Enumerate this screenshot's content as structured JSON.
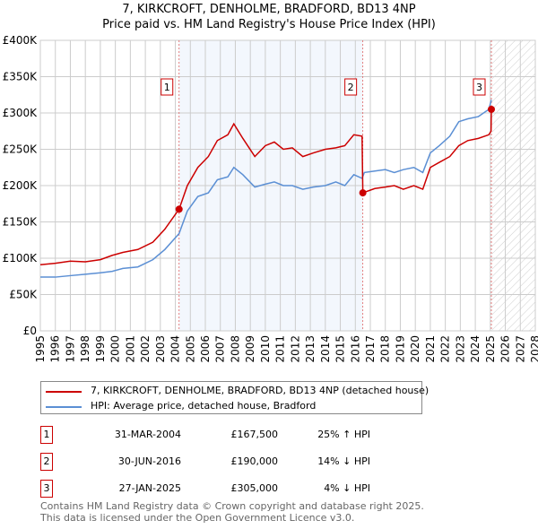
{
  "chart_data": {
    "type": "line",
    "title": "7, KIRKCROFT, DENHOLME, BRADFORD, BD13 4NP",
    "subtitle": "Price paid vs. HM Land Registry's House Price Index (HPI)",
    "xlim": [
      1995,
      2028
    ],
    "ylim": [
      0,
      400000
    ],
    "yticks": [
      0,
      50000,
      100000,
      150000,
      200000,
      250000,
      300000,
      350000,
      400000
    ],
    "ytick_labels": [
      "£0",
      "£50K",
      "£100K",
      "£150K",
      "£200K",
      "£250K",
      "£300K",
      "£350K",
      "£400K"
    ],
    "xticks": [
      1995,
      1996,
      1997,
      1998,
      1999,
      2000,
      2001,
      2002,
      2003,
      2004,
      2005,
      2006,
      2007,
      2008,
      2009,
      2010,
      2011,
      2012,
      2013,
      2014,
      2015,
      2016,
      2017,
      2018,
      2019,
      2020,
      2021,
      2022,
      2023,
      2024,
      2025,
      2026,
      2027,
      2028
    ],
    "grid": true,
    "series": [
      {
        "name": "7, KIRKCROFT, DENHOLME, BRADFORD, BD13 4NP (detached house)",
        "color": "#cc0000",
        "x": [
          1995,
          1996,
          1997,
          1998,
          1999,
          1999.8,
          2000.5,
          2001.5,
          2002.5,
          2003.3,
          2004.25,
          2004.8,
          2005.5,
          2006.2,
          2006.8,
          2007.5,
          2007.9,
          2008.5,
          2009.3,
          2010,
          2010.6,
          2011.2,
          2011.8,
          2012.5,
          2013.2,
          2014,
          2014.7,
          2015.3,
          2015.9,
          2016.45,
          2016.5,
          2017.3,
          2018,
          2018.6,
          2019.2,
          2019.9,
          2020.5,
          2021,
          2021.6,
          2022.3,
          2022.9,
          2023.5,
          2024.2,
          2024.9,
          2025.05,
          2025.07
        ],
        "y": [
          91000,
          93000,
          96000,
          95000,
          98000,
          104000,
          108000,
          112000,
          122000,
          140000,
          167500,
          200000,
          225000,
          240000,
          262000,
          270000,
          285000,
          265000,
          240000,
          255000,
          260000,
          250000,
          252000,
          240000,
          245000,
          250000,
          252000,
          255000,
          270000,
          268000,
          190000,
          196000,
          198000,
          200000,
          195000,
          200000,
          195000,
          225000,
          232000,
          240000,
          255000,
          262000,
          265000,
          270000,
          275000,
          305000
        ]
      },
      {
        "name": "HPI: Average price, detached house, Bradford",
        "color": "#5b8fd4",
        "x": [
          1995,
          1996,
          1997,
          1998,
          1999,
          1999.8,
          2000.5,
          2001.5,
          2002.5,
          2003.3,
          2004.25,
          2004.8,
          2005.5,
          2006.2,
          2006.8,
          2007.5,
          2007.9,
          2008.5,
          2009.3,
          2010,
          2010.6,
          2011.2,
          2011.8,
          2012.5,
          2013.2,
          2014,
          2014.7,
          2015.3,
          2015.9,
          2016.45,
          2016.6,
          2017.3,
          2018,
          2018.6,
          2019.2,
          2019.9,
          2020.5,
          2021,
          2021.6,
          2022.3,
          2022.9,
          2023.5,
          2024.2,
          2024.9,
          2025.07
        ],
        "y": [
          74000,
          74000,
          76000,
          78000,
          80000,
          82000,
          86000,
          88000,
          98000,
          112000,
          134000,
          165000,
          185000,
          190000,
          208000,
          212000,
          225000,
          215000,
          198000,
          202000,
          205000,
          200000,
          200000,
          195000,
          198000,
          200000,
          205000,
          200000,
          215000,
          210000,
          218000,
          220000,
          222000,
          218000,
          222000,
          225000,
          218000,
          245000,
          255000,
          268000,
          288000,
          292000,
          295000,
          305000,
          318000
        ]
      }
    ],
    "sales": [
      {
        "id": "1",
        "x": 2004.25,
        "y": 167500,
        "date": "31-MAR-2004",
        "price": "£167,500",
        "hpi": "25% ↑ HPI"
      },
      {
        "id": "2",
        "x": 2016.5,
        "y": 190000,
        "date": "30-JUN-2016",
        "price": "£190,000",
        "hpi": "14% ↓ HPI"
      },
      {
        "id": "3",
        "x": 2025.07,
        "y": 305000,
        "date": "27-JAN-2025",
        "price": "£305,000",
        "hpi": "4% ↓ HPI"
      }
    ],
    "shaded_range": [
      2004.25,
      2016.5
    ],
    "forecast_from": 2025.1,
    "legend": "bottom"
  },
  "footer": [
    "Contains HM Land Registry data © Crown copyright and database right 2025.",
    "This data is licensed under the Open Government Licence v3.0."
  ]
}
